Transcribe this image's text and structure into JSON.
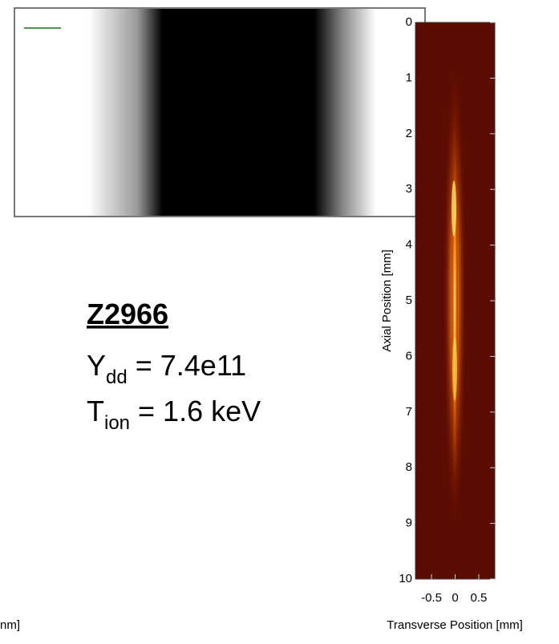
{
  "chart_data": {
    "type": "image",
    "xlabel": "Transverse Position [mm]",
    "ylabel": "Axial Position [mm]",
    "xlim": [
      -0.84,
      0.84
    ],
    "xticks": [
      -0.5,
      0,
      0.5
    ],
    "ylim": [
      0,
      10
    ],
    "yticks": [
      0,
      1,
      2,
      3,
      4,
      5,
      6,
      7,
      8,
      9,
      10
    ],
    "annotations": {
      "shot": "Z2966",
      "yield": {
        "symbol": "Y",
        "subscript": "dd",
        "text": " = 7.4e11"
      },
      "ion_temperature": {
        "symbol": "T",
        "subscript": "ion",
        "text": " = 1.6 keV"
      }
    },
    "cut_label": "nm]"
  }
}
